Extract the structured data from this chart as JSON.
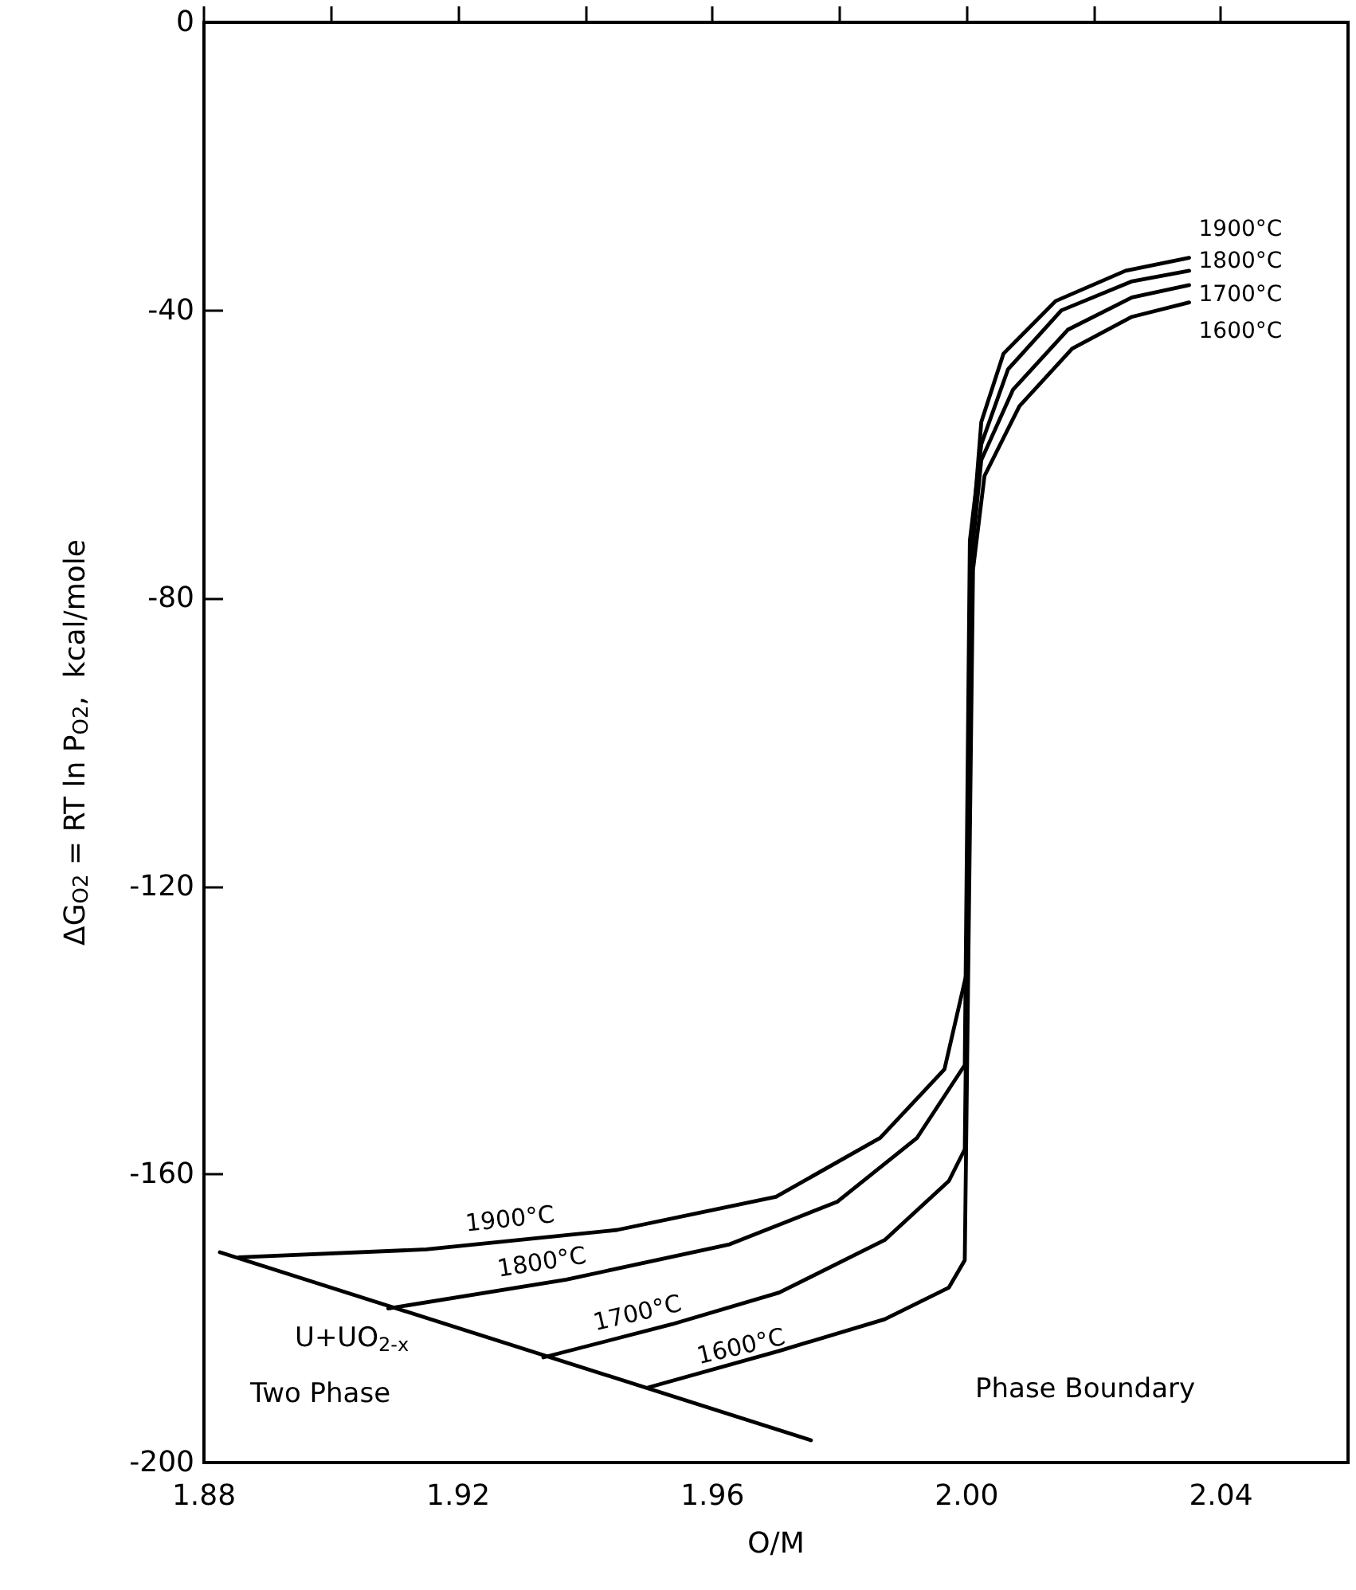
{
  "chart_data": {
    "type": "line",
    "xlabel": "O/M",
    "ylabel": "ΔG$_{O2}$ = RT ln P$_{O2}$,  kcal/mole",
    "xlim": [
      1.88,
      2.06
    ],
    "xticks": [
      1.88,
      {
        "value": 1.9,
        "label": null
      },
      1.92,
      {
        "value": 1.94,
        "label": null
      },
      1.96,
      {
        "value": 1.98,
        "label": null
      },
      "2.00",
      {
        "value": 2.02,
        "label": null
      },
      2.04
    ],
    "ylim": [
      -200,
      0
    ],
    "yticks": [
      -200,
      -160,
      -120,
      -80,
      -40,
      0
    ],
    "grid": false,
    "legend": false,
    "marker": "none",
    "line_style": "solid",
    "series": [
      {
        "name": "1900°C",
        "color": "#000000",
        "x": [
          1.8855,
          1.915,
          1.945,
          1.97,
          1.9864,
          1.9965,
          2.0,
          2.001,
          2.0023,
          2.0058,
          2.014,
          2.025,
          2.035
        ],
        "values": [
          -171.5,
          -170.4,
          -167.7,
          -163.1,
          -154.9,
          -145.4,
          -132,
          -70,
          -55.5,
          -46,
          -38.7,
          -34.5,
          -32.7
        ]
      },
      {
        "name": "1800°C",
        "color": "#000000",
        "x": [
          1.909,
          1.937,
          1.9627,
          1.9796,
          1.9922,
          1.9997,
          2.0005,
          2.0023,
          2.0065,
          2.0149,
          2.0259,
          2.035
        ],
        "values": [
          -178.6,
          -174.6,
          -169.7,
          -163.8,
          -154.9,
          -144.8,
          -72,
          -58.6,
          -48.2,
          -40,
          -36,
          -34.5
        ]
      },
      {
        "name": "1700°C",
        "color": "#000000",
        "x": [
          1.9334,
          1.9536,
          1.9705,
          1.9871,
          1.9972,
          1.9997,
          2.0008,
          2.0023,
          2.0073,
          2.0159,
          2.026,
          2.035
        ],
        "values": [
          -185.4,
          -180.8,
          -176.4,
          -169.1,
          -160.9,
          -156.5,
          -74,
          -60.8,
          -51,
          -42.7,
          -38.2,
          -36.5
        ]
      },
      {
        "name": "1600°C",
        "color": "#000000",
        "x": [
          1.9498,
          1.9705,
          1.9871,
          1.9972,
          1.9997,
          2.001,
          2.0028,
          2.0083,
          2.0166,
          2.026,
          2.035
        ],
        "values": [
          -189.6,
          -184.5,
          -180.1,
          -175.7,
          -171.9,
          -76,
          -63,
          -53.3,
          -45.3,
          -40.9,
          -38.9
        ]
      },
      {
        "color": "#000000",
        "x": [
          1.8825,
          1.9755
        ],
        "values": [
          -170.8,
          -196.9
        ]
      }
    ],
    "annotations": [
      "1900°C",
      "1800°C",
      "1700°C",
      "1600°C",
      "U+UO$_{2-x}$",
      "Two Phase",
      "Phase Boundary"
    ]
  }
}
